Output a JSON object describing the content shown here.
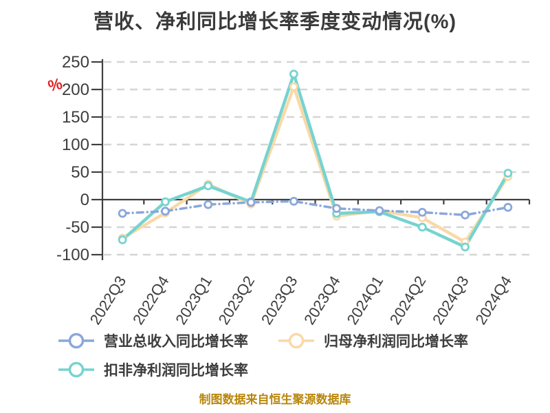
{
  "title": "营收、净利同比增长率季度变动情况(%)",
  "y_axis_unit": "%",
  "footer_note": "制图数据来自恒生聚源数据库",
  "colors": {
    "background": "#ffffff",
    "axis": "#3f3f3f",
    "grid": "#d5d5d5",
    "tick_label": "#3d3d3d",
    "title": "#3a3a3a",
    "unit_label": "#e02020",
    "footer": "#b8860b"
  },
  "chart_data": {
    "type": "line",
    "categories": [
      "2022Q3",
      "2022Q4",
      "2023Q1",
      "2023Q2",
      "2023Q3",
      "2023Q4",
      "2024Q1",
      "2024Q2",
      "2024Q3",
      "2024Q4"
    ],
    "series": [
      {
        "name": "营业总收入同比增长率",
        "color": "#8aa7db",
        "line_style": "dashdot",
        "values": [
          -25,
          -21,
          -9,
          -5,
          -3,
          -16,
          -20,
          -23,
          -28,
          -14
        ]
      },
      {
        "name": "归母净利润同比增长率",
        "color": "#f9d9a7",
        "line_style": "solid",
        "values": [
          -70,
          -24,
          28,
          -8,
          205,
          -30,
          -20,
          -33,
          -77,
          42
        ]
      },
      {
        "name": "扣非净利润同比增长率",
        "color": "#76d3d0",
        "line_style": "solid",
        "values": [
          -73,
          -4,
          25,
          -4,
          228,
          -25,
          -22,
          -50,
          -86,
          48
        ]
      }
    ],
    "ylim": [
      -100,
      250
    ],
    "yticks": [
      250,
      200,
      150,
      100,
      50,
      0,
      -50,
      -100
    ],
    "grid": true,
    "legend_position": "bottom",
    "draw_order": [
      1,
      2,
      0
    ]
  }
}
